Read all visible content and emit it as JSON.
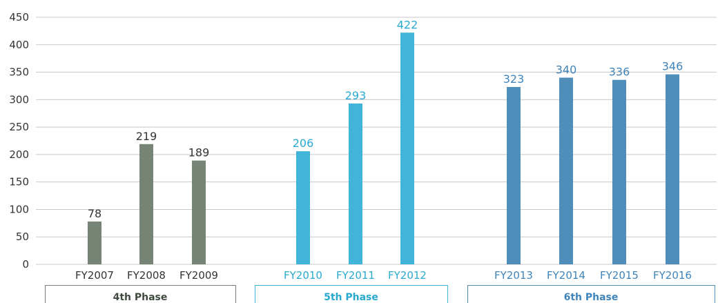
{
  "chart_data": {
    "type": "bar",
    "title": "",
    "xlabel": "",
    "ylabel": "",
    "ylim": [
      0,
      450
    ],
    "yticks": [
      0,
      50,
      100,
      150,
      200,
      250,
      300,
      350,
      400,
      450
    ],
    "grid": true,
    "legend": "none",
    "groups": [
      {
        "name": "4th Phase",
        "color": "#758474",
        "text_color": "#333333",
        "categories": [
          "FY2007",
          "FY2008",
          "FY2009"
        ],
        "values": [
          78,
          219,
          189
        ]
      },
      {
        "name": "5th Phase",
        "color": "#42b4da",
        "text_color": "#2aa9cf",
        "categories": [
          "FY2010",
          "FY2011",
          "FY2012"
        ],
        "values": [
          206,
          293,
          422
        ]
      },
      {
        "name": "6th Phase",
        "color": "#4f8dba",
        "text_color": "#3f84bb",
        "categories": [
          "FY2013",
          "FY2014",
          "FY2015",
          "FY2016"
        ],
        "values": [
          323,
          340,
          336,
          346
        ]
      }
    ]
  }
}
